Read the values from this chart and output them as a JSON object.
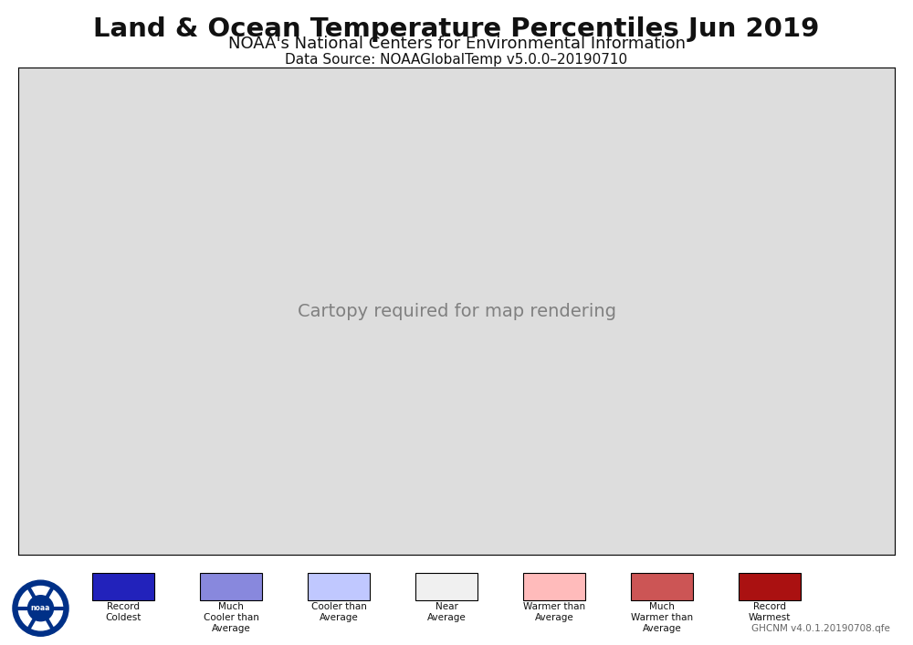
{
  "title": "Land & Ocean Temperature Percentiles Jun 2019",
  "subtitle": "NOAA's National Centers for Environmental Information",
  "datasource": "Data Source: NOAAGlobalTemp v5.0.0–20190710",
  "watermark": "GHCNM v4.0.1.20190708.qfe",
  "background_color": "#ffffff",
  "ocean_gray": "#b0b0b0",
  "fig_bg": "#ffffff",
  "legend_items": [
    {
      "label": "Record\nColdest",
      "color": "#2222bb"
    },
    {
      "label": "Much\nCooler than\nAverage",
      "color": "#8888dd"
    },
    {
      "label": "Cooler than\nAverage",
      "color": "#c0c8ff"
    },
    {
      "label": "Near\nAverage",
      "color": "#f0f0f0"
    },
    {
      "label": "Warmer than\nAverage",
      "color": "#ffbbbb"
    },
    {
      "label": "Much\nWarmer than\nAverage",
      "color": "#cc5555"
    },
    {
      "label": "Record\nWarmest",
      "color": "#aa1111"
    }
  ],
  "colormap_colors": [
    "#2222bb",
    "#8888dd",
    "#c0c8ff",
    "#f0f0f0",
    "#ffbbbb",
    "#cc5555",
    "#aa1111"
  ],
  "title_fontsize": 21,
  "subtitle_fontsize": 13,
  "datasource_fontsize": 11,
  "noaa_logo_color": "#003087",
  "noaa_logo_light": "#4488cc"
}
